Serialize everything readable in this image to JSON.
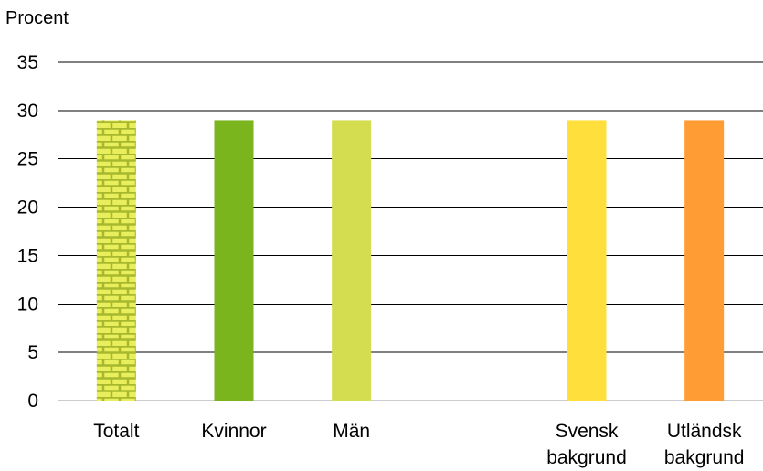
{
  "chart_data": {
    "type": "bar",
    "ylabel": "Procent",
    "ylim": [
      0,
      35
    ],
    "yticks": [
      0,
      5,
      10,
      15,
      20,
      25,
      30,
      35
    ],
    "grid": true,
    "categories": [
      [
        "Totalt"
      ],
      [
        "Kvinnor"
      ],
      [
        "Män"
      ],
      [],
      [
        "Svensk",
        "bakgrund"
      ],
      [
        "Utländsk",
        "bakgrund"
      ]
    ],
    "values": [
      29,
      29,
      29,
      null,
      29,
      29
    ],
    "colors": [
      "#c8d94b",
      "#7ab51d",
      "#d4dc4f",
      null,
      "#ffdf3c",
      "#ff9c33"
    ],
    "patterns": [
      "brick",
      "solid",
      "solid",
      null,
      "solid",
      "solid"
    ]
  }
}
